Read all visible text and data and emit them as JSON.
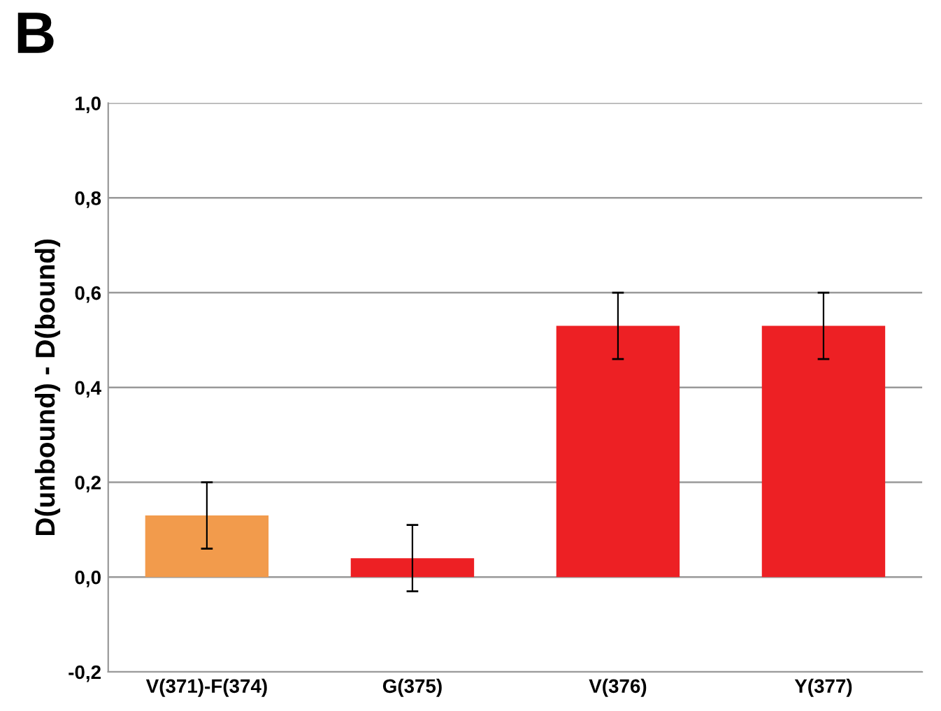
{
  "chart_data": {
    "type": "bar",
    "categories": [
      "V(371)-F(374)",
      "G(375)",
      "V(376)",
      "Y(377)"
    ],
    "values": [
      0.13,
      0.04,
      0.53,
      0.53
    ],
    "colors": [
      "#f29b4c",
      "#ed2024",
      "#ed2024",
      "#ed2024"
    ],
    "errors": [
      [
        0.06,
        0.2
      ],
      [
        -0.03,
        0.11
      ],
      [
        0.46,
        0.6
      ],
      [
        0.46,
        0.6
      ]
    ],
    "ylabel": "D(unbound) - D(bound)",
    "ylim": [
      -0.2,
      1.0
    ],
    "yticks": [
      {
        "value": -0.2,
        "label": "-0,2"
      },
      {
        "value": 0.0,
        "label": "0,0"
      },
      {
        "value": 0.2,
        "label": "0,2"
      },
      {
        "value": 0.4,
        "label": "0,4"
      },
      {
        "value": 0.6,
        "label": "0,6"
      },
      {
        "value": 0.8,
        "label": "0,8"
      },
      {
        "value": 1.0,
        "label": "1,0"
      }
    ],
    "grid": "y",
    "annotations": [
      "B"
    ]
  }
}
